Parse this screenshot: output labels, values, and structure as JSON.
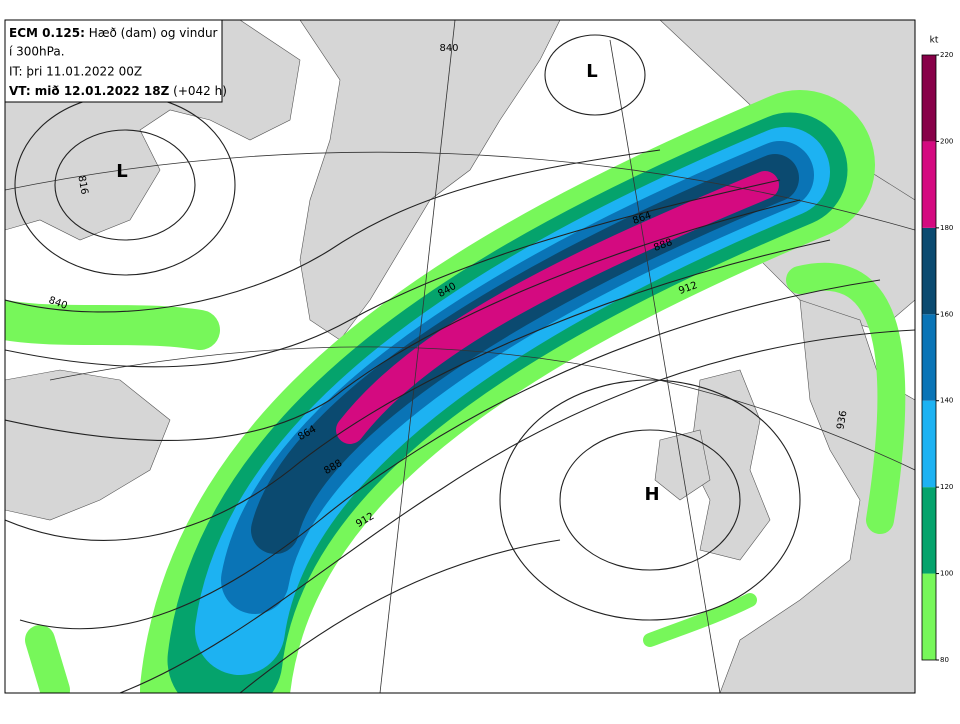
{
  "header": {
    "model": "ECM 0.125:",
    "description": "Hæð (dam) og vindur",
    "level": "í 300hPa.",
    "initial_time": "IT: þri 11.01.2022 00Z",
    "valid_time": "VT: mið 12.01.2022 18Z",
    "lead_time": "(+042 h)"
  },
  "pressure_centers": [
    {
      "label": "L"
    },
    {
      "label": "L"
    },
    {
      "label": "H"
    }
  ],
  "contour_labels": [
    "840",
    "816",
    "840",
    "840",
    "864",
    "888",
    "912",
    "864",
    "888",
    "912",
    "936"
  ],
  "colorbar": {
    "unit": "kt",
    "ticks": [
      80,
      100,
      120,
      140,
      160,
      180,
      200,
      220
    ],
    "colors": [
      "#77f75a",
      "#05a36c",
      "#1db2f2",
      "#0a74b6",
      "#0b4a70",
      "#d40a80",
      "#870048"
    ]
  }
}
